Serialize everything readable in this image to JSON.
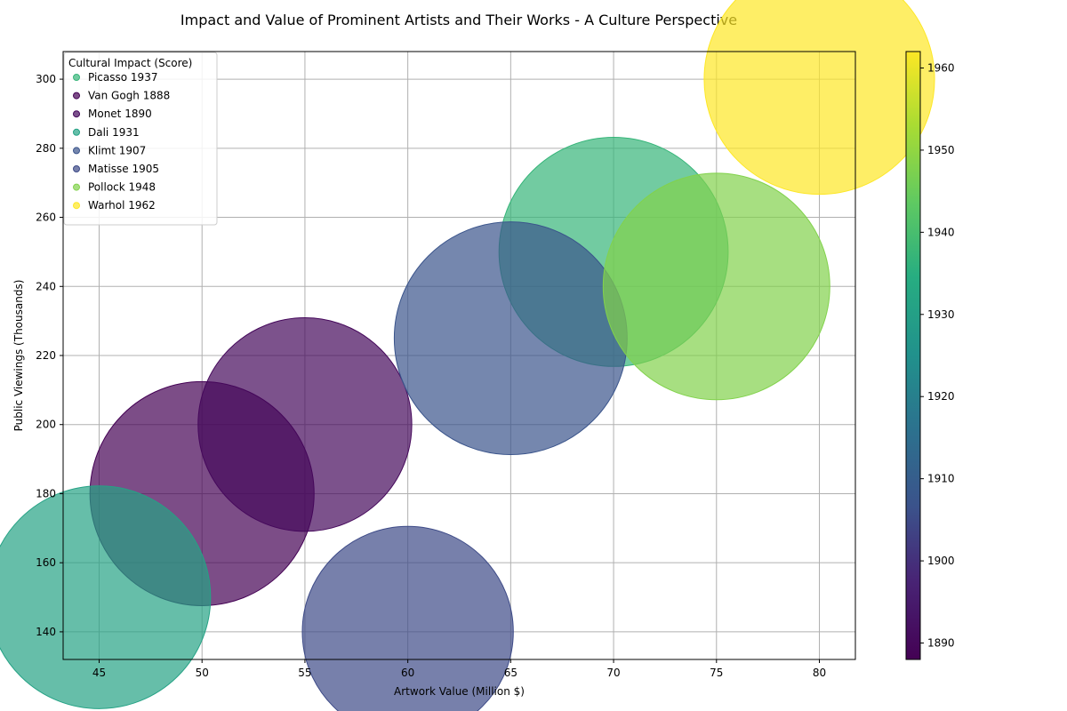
{
  "chart_data": {
    "type": "scatter",
    "title": "Impact and Value of Prominent Artists and Their Works - A Culture Perspective",
    "xlabel": "Artwork Value (Million $)",
    "ylabel": "Public Viewings (Thousands)",
    "xlim": [
      43.25,
      81.75
    ],
    "ylim": [
      132,
      308
    ],
    "xticks": [
      45,
      50,
      55,
      60,
      65,
      70,
      75,
      80
    ],
    "yticks": [
      140,
      160,
      180,
      200,
      220,
      240,
      260,
      280,
      300
    ],
    "grid": true,
    "legend": {
      "title": "Cultural Impact (Score)",
      "position": "upper-left"
    },
    "colorbar": {
      "colormap": "viridis",
      "min": 1888,
      "max": 1962,
      "ticks": [
        1890,
        1900,
        1910,
        1920,
        1930,
        1940,
        1950,
        1960
      ]
    },
    "series": [
      {
        "name": "Picasso 1937",
        "x": 70,
        "y": 250,
        "year": 1937,
        "size": 92
      },
      {
        "name": "Van Gogh 1888",
        "x": 50,
        "y": 180,
        "year": 1888,
        "size": 88
      },
      {
        "name": "Monet 1890",
        "x": 55,
        "y": 200,
        "year": 1890,
        "size": 80
      },
      {
        "name": "Dali 1931",
        "x": 45,
        "y": 150,
        "year": 1931,
        "size": 87
      },
      {
        "name": "Klimt 1907",
        "x": 65,
        "y": 225,
        "year": 1907,
        "size": 95
      },
      {
        "name": "Matisse 1905",
        "x": 60,
        "y": 140,
        "year": 1905,
        "size": 78
      },
      {
        "name": "Pollock 1948",
        "x": 75,
        "y": 240,
        "year": 1948,
        "size": 90
      },
      {
        "name": "Warhol 1962",
        "x": 80,
        "y": 300,
        "year": 1962,
        "size": 93
      }
    ]
  }
}
